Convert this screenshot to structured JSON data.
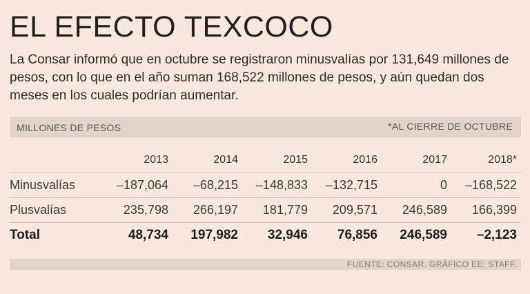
{
  "title": "EL EFECTO TEXCOCO",
  "intro": "La Consar informó que en octubre se registraron minusvalías por 131,649 millones de pesos, con lo que en el año suman 168,522 millones de pesos, y aún quedan dos meses en los cuales podrían aumentar.",
  "band": {
    "unit_label": "MILLONES DE PESOS",
    "note": "*AL CIERRE DE OCTUBRE"
  },
  "footer": "FUENTE: CONSAR. GRÁFICO EE: STAFF.",
  "colors": {
    "background": "#f9e8dd",
    "band": "#e2d4ca"
  },
  "chart_data": {
    "type": "table",
    "title": "EL EFECTO TEXCOCO",
    "columns": [
      "2013",
      "2014",
      "2015",
      "2016",
      "2017",
      "2018*"
    ],
    "rows": [
      {
        "label": "Minusvalías",
        "values": [
          "–187,064",
          "–68,215",
          "–148,833",
          "–132,715",
          "0",
          "–168,522"
        ]
      },
      {
        "label": "Plusvalías",
        "values": [
          "235,798",
          "266,197",
          "181,779",
          "209,571",
          "246,589",
          "166,399"
        ]
      },
      {
        "label": "Total",
        "values": [
          "48,734",
          "197,982",
          "32,946",
          "76,856",
          "246,589",
          "–2,123"
        ]
      }
    ]
  }
}
